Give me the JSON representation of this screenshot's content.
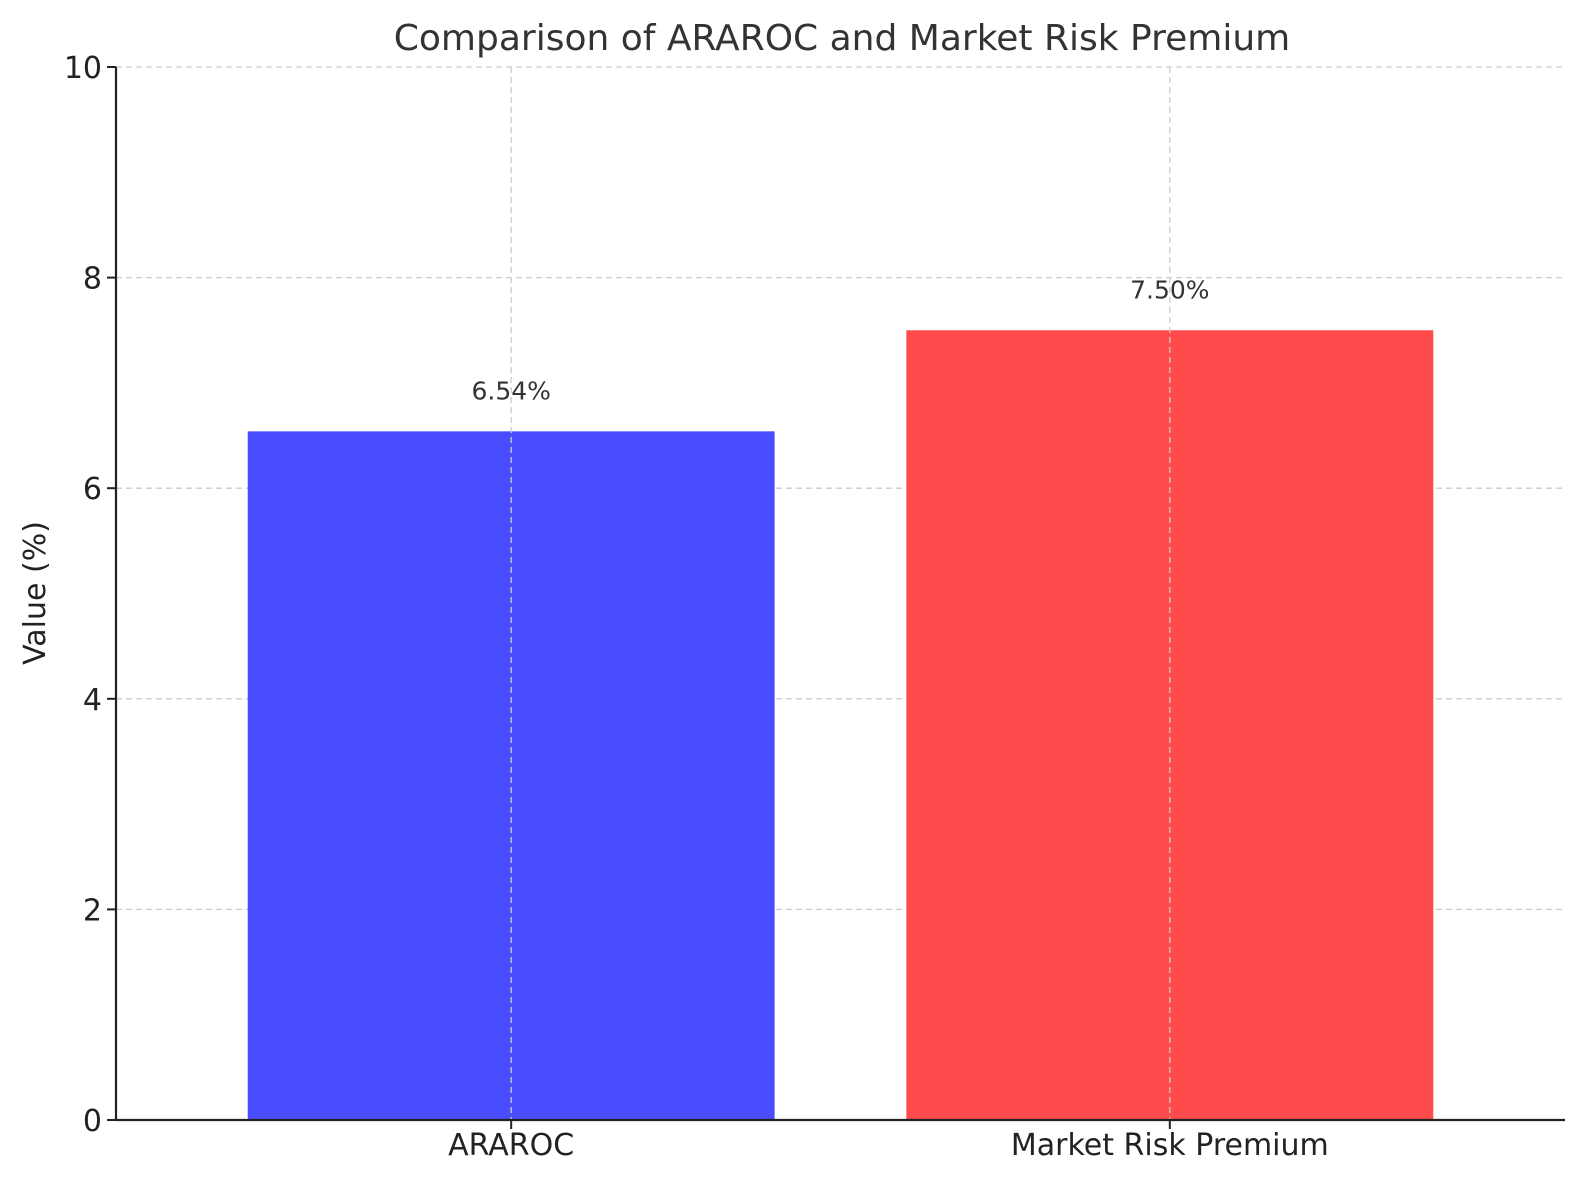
{
  "chart_data": {
    "type": "bar",
    "title": "Comparison of ARAROC and Market Risk Premium",
    "xlabel": "",
    "ylabel": "Value (%)",
    "categories": [
      "ARAROC",
      "Market Risk Premium"
    ],
    "values": [
      6.54,
      7.5
    ],
    "data_labels": [
      "6.54%",
      "7.50%"
    ],
    "colors": [
      "#4a4dff",
      "#ff4b4b"
    ],
    "ylim": [
      0,
      10
    ],
    "yticks": [
      0,
      2,
      4,
      6,
      8,
      10
    ],
    "grid": true
  }
}
